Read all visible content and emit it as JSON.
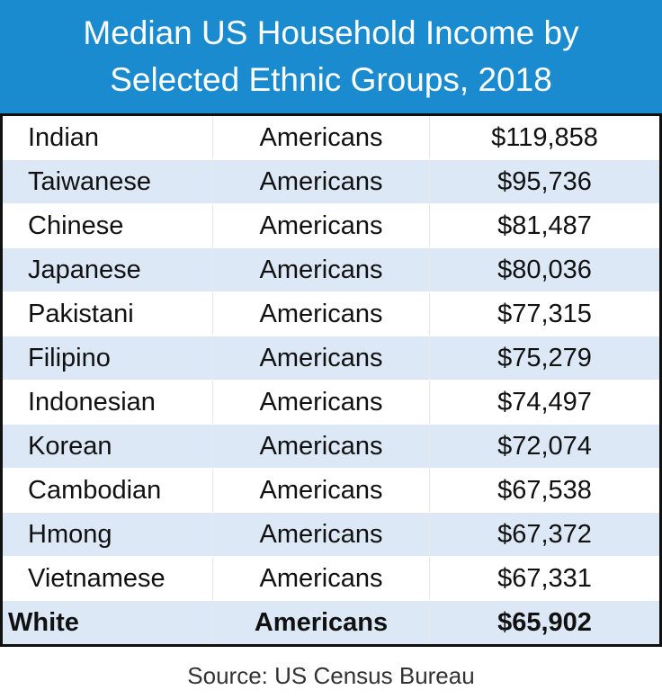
{
  "header": {
    "title": "Median US Household Income by Selected Ethnic Groups, 2018"
  },
  "table": {
    "rows": [
      [
        "Indian",
        "Americans",
        "$119,858"
      ],
      [
        "Taiwanese",
        "Americans",
        "$95,736"
      ],
      [
        "Chinese",
        "Americans",
        "$81,487"
      ],
      [
        "Japanese",
        "Americans",
        "$80,036"
      ],
      [
        "Pakistani",
        "Americans",
        "$77,315"
      ],
      [
        "Filipino",
        "Americans",
        "$75,279"
      ],
      [
        "Indonesian",
        "Americans",
        "$74,497"
      ],
      [
        "Korean",
        "Americans",
        "$72,074"
      ],
      [
        "Cambodian",
        "Americans",
        "$67,538"
      ],
      [
        "Hmong",
        "Americans",
        "$67,372"
      ],
      [
        "Vietnamese",
        "Americans",
        "$67,331"
      ],
      [
        "White",
        "Americans",
        "$65,902"
      ]
    ]
  },
  "footer": {
    "source": "Source: US Census Bureau"
  }
}
